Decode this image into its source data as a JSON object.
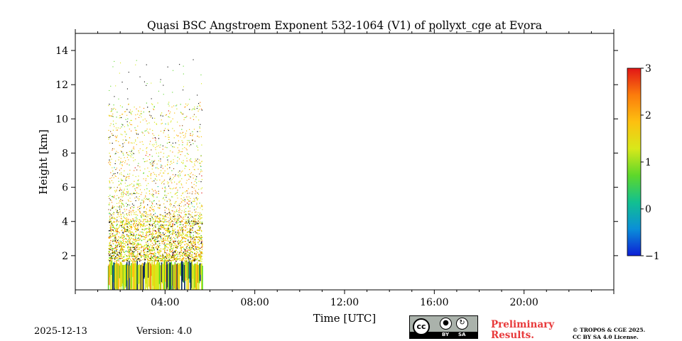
{
  "chart_data": {
    "type": "heatmap",
    "title": "Quasi BSC Angstroem Exponent 532-1064 (V1) of pollyxt_cge at Evora",
    "xlabel": "Time [UTC]",
    "ylabel": "Height [km]",
    "x_unit": "hours UTC",
    "xlim": [
      0,
      24
    ],
    "ylim": [
      0,
      15
    ],
    "x_ticks": [
      {
        "value": 4,
        "label": "04:00"
      },
      {
        "value": 8,
        "label": "08:00"
      },
      {
        "value": 12,
        "label": "12:00"
      },
      {
        "value": 16,
        "label": "16:00"
      },
      {
        "value": 20,
        "label": "20:00"
      }
    ],
    "y_ticks": [
      {
        "value": 2,
        "label": "2"
      },
      {
        "value": 4,
        "label": "4"
      },
      {
        "value": 6,
        "label": "6"
      },
      {
        "value": 8,
        "label": "8"
      },
      {
        "value": 10,
        "label": "10"
      },
      {
        "value": 12,
        "label": "12"
      },
      {
        "value": 14,
        "label": "14"
      }
    ],
    "colorbar": {
      "vmin": -1,
      "vmax": 3,
      "ticks": [
        {
          "value": -1,
          "label": "−1"
        },
        {
          "value": 0,
          "label": "0"
        },
        {
          "value": 1,
          "label": "1"
        },
        {
          "value": 2,
          "label": "2"
        },
        {
          "value": 3,
          "label": "3"
        }
      ],
      "colormap": [
        "#0d1fd6",
        "#0a8fd8",
        "#12c090",
        "#5ed82a",
        "#d8e81a",
        "#fdc010",
        "#fb7c0c",
        "#e21616"
      ]
    },
    "data_coverage": {
      "start_hour": 1.45,
      "end_hour": 5.65,
      "max_height_km": 13.5
    },
    "regions": [
      {
        "name": "near-range dense layer",
        "height_km": [
          0,
          1.7
        ],
        "typical_value": 1.3
      },
      {
        "name": "boundary layer",
        "height_km": [
          1.7,
          4.0
        ],
        "typical_value": 1.5
      },
      {
        "name": "sparse upper signal",
        "height_km": [
          4.0,
          11.0
        ],
        "typical_value": 1.5
      }
    ]
  },
  "footer": {
    "date": "2025-12-13",
    "version": "Version: 4.0",
    "preliminary": [
      "Preliminary",
      "Results."
    ],
    "copyright_lines": [
      "© TROPOS & CGE 2025.",
      "CC BY SA 4.0 License."
    ],
    "license_badge": {
      "cc": "cc",
      "by": "BY",
      "sa": "SA"
    }
  }
}
